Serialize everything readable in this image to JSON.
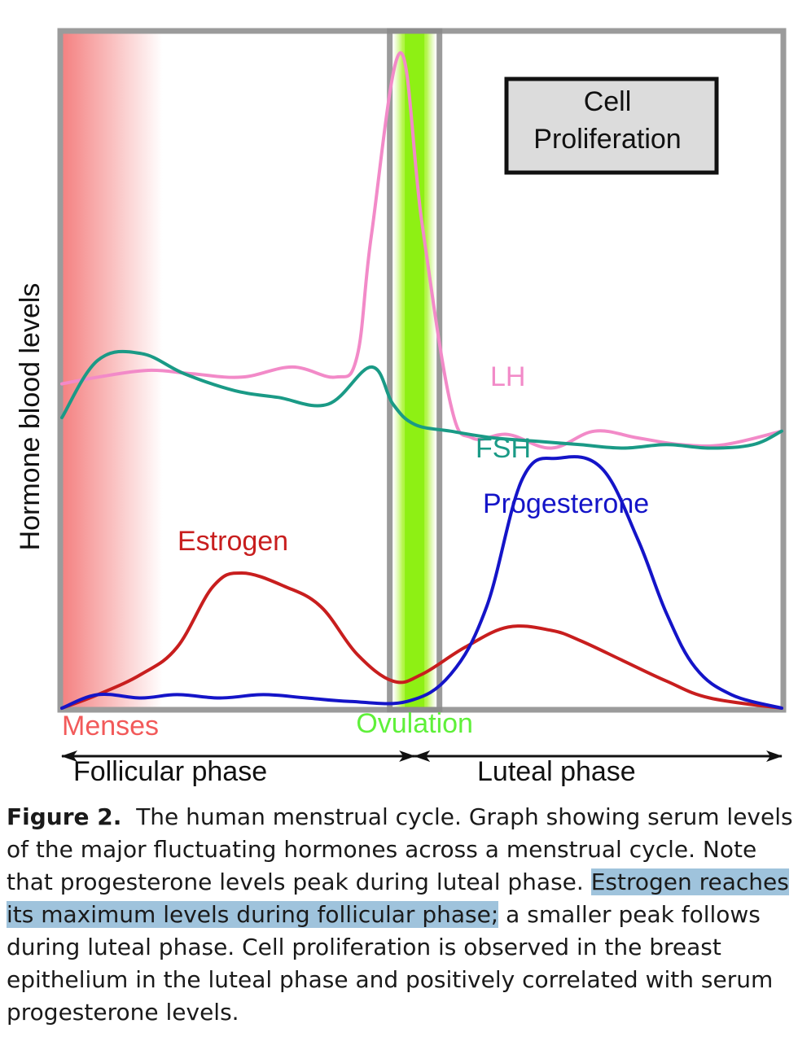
{
  "chart_data": {
    "type": "line",
    "ylabel": "Hormone blood levels",
    "xlabel": "",
    "x_domain": [
      0,
      100
    ],
    "y_domain": [
      0,
      100
    ],
    "grid": false,
    "series": [
      {
        "name": "LH",
        "color": "#f28ac8",
        "points": [
          [
            0,
            48
          ],
          [
            5,
            49
          ],
          [
            12,
            50
          ],
          [
            18,
            49.5
          ],
          [
            25,
            49
          ],
          [
            32,
            50.5
          ],
          [
            38,
            49
          ],
          [
            41,
            52
          ],
          [
            43,
            70
          ],
          [
            47,
            97
          ],
          [
            50,
            72
          ],
          [
            54,
            45
          ],
          [
            57,
            40
          ],
          [
            62,
            40.5
          ],
          [
            68,
            38.5
          ],
          [
            74,
            41
          ],
          [
            80,
            40
          ],
          [
            86,
            39
          ],
          [
            92,
            39
          ],
          [
            100,
            41
          ]
        ]
      },
      {
        "name": "FSH",
        "color": "#1a9a86",
        "points": [
          [
            0,
            43
          ],
          [
            5,
            51.5
          ],
          [
            11,
            52.5
          ],
          [
            17,
            49.5
          ],
          [
            24,
            47
          ],
          [
            30,
            46
          ],
          [
            37,
            45
          ],
          [
            43,
            50.5
          ],
          [
            46,
            45
          ],
          [
            49,
            42
          ],
          [
            54,
            41
          ],
          [
            60,
            40
          ],
          [
            66,
            39.5
          ],
          [
            72,
            39
          ],
          [
            78,
            38.5
          ],
          [
            84,
            39
          ],
          [
            90,
            38.5
          ],
          [
            96,
            39
          ],
          [
            100,
            41
          ]
        ]
      },
      {
        "name": "Estrogen",
        "color": "#c81e1e",
        "points": [
          [
            0,
            0
          ],
          [
            5,
            2
          ],
          [
            11,
            5
          ],
          [
            16,
            9
          ],
          [
            21,
            18
          ],
          [
            25,
            20
          ],
          [
            31,
            18
          ],
          [
            36,
            15
          ],
          [
            41,
            8
          ],
          [
            46,
            4
          ],
          [
            50,
            5
          ],
          [
            56,
            9
          ],
          [
            62,
            12
          ],
          [
            68,
            11.5
          ],
          [
            72,
            10
          ],
          [
            78,
            7
          ],
          [
            84,
            4
          ],
          [
            90,
            1.5
          ],
          [
            100,
            0
          ]
        ]
      },
      {
        "name": "Progesterone",
        "color": "#1414c8",
        "points": [
          [
            0,
            0
          ],
          [
            5,
            2
          ],
          [
            11,
            1.5
          ],
          [
            16,
            2
          ],
          [
            22,
            1.5
          ],
          [
            28,
            2
          ],
          [
            34,
            1.5
          ],
          [
            40,
            1
          ],
          [
            48,
            1
          ],
          [
            54,
            5
          ],
          [
            59,
            15
          ],
          [
            64,
            34
          ],
          [
            69,
            37
          ],
          [
            75,
            35.5
          ],
          [
            80,
            25
          ],
          [
            84,
            14
          ],
          [
            88,
            6
          ],
          [
            93,
            2
          ],
          [
            100,
            0
          ]
        ]
      }
    ],
    "curve_labels": [
      {
        "series": "LH",
        "text": "LH"
      },
      {
        "series": "FSH",
        "text": "FSH"
      },
      {
        "series": "Progesterone",
        "text": "Progesterone"
      },
      {
        "series": "Estrogen",
        "text": "Estrogen"
      }
    ],
    "regions": {
      "menses": {
        "label": "Menses",
        "color": "#f25a5a",
        "x_start": 0,
        "x_end": 14
      },
      "ovulation": {
        "label": "Ovulation",
        "color": "#8ff01a",
        "x_start": 46,
        "x_end": 52
      }
    },
    "phases": [
      {
        "label": "Follicular phase",
        "x_start": 0,
        "x_end": 49
      },
      {
        "label": "Luteal phase",
        "x_start": 49,
        "x_end": 100
      }
    ],
    "annotation_box": {
      "lines": [
        "Cell",
        "Proliferation"
      ]
    }
  },
  "caption": {
    "label": "Figure 2.",
    "text_before": "The human menstrual cycle. Graph showing serum levels of the major fluctuating hormones across a menstrual cycle. Note that progesterone levels peak during luteal phase. ",
    "highlighted": "Estrogen reaches its maximum levels during follicular phase;",
    "text_after": " a smaller peak follows during luteal phase. Cell proliferation is observed in the breast epithelium in the luteal phase and positively correlated with serum progesterone levels."
  }
}
